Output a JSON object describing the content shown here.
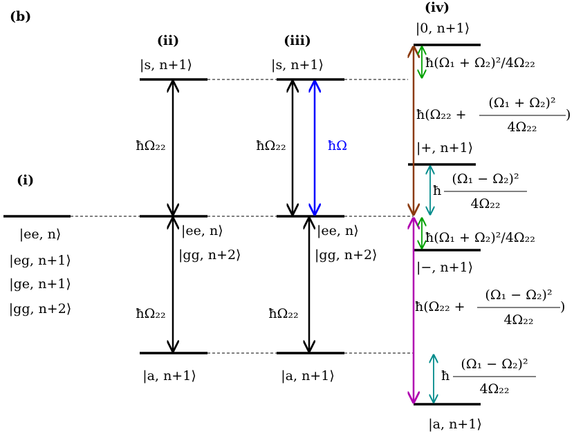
{
  "panel_label": "(b)",
  "columns": [
    {
      "label": "(i)",
      "levels": [
        "|ee, n⟩",
        "|eg, n+1⟩",
        "|ge, n+1⟩",
        "|gg, n+2⟩"
      ]
    },
    {
      "label": "(ii)",
      "top": "|s, n+1⟩",
      "middle": [
        "|ee, n⟩",
        "|gg, n+2⟩"
      ],
      "bottom": "|a, n+1⟩",
      "upper_gap": "ħΩ₂₂",
      "lower_gap": "ħΩ₂₂"
    },
    {
      "label": "(iii)",
      "top": "|s, n+1⟩",
      "middle": [
        "|ee, n⟩",
        "|gg, n+2⟩"
      ],
      "bottom": "|a, n+1⟩",
      "upper_gap": "ħΩ₂₂",
      "drive": "ħΩ",
      "lower_gap": "ħΩ₂₂"
    },
    {
      "label": "(iv)",
      "top": "|0, n+1⟩",
      "plus": "|+, n+1⟩",
      "minus": "|−, n+1⟩",
      "bottom": "|a, n+1⟩",
      "shift_top": "ħ(Ω₁ + Ω₂)²/4Ω₂₂",
      "gap_top": {
        "prefix": "ħ(Ω₂₂ + ",
        "numerator": "(Ω₁ + Ω₂)²",
        "denominator": "4Ω₂₂",
        "suffix": ")"
      },
      "shift_plus": {
        "prefix": "ħ",
        "numerator": "(Ω₁ − Ω₂)²",
        "denominator": "4Ω₂₂"
      },
      "shift_minus": "ħ(Ω₁ + Ω₂)²/4Ω₂₂",
      "gap_bottom": {
        "prefix": "ħ(Ω₂₂ + ",
        "numerator": "(Ω₁ − Ω₂)²",
        "denominator": "4Ω₂₂",
        "suffix": ")"
      },
      "shift_bottom": {
        "prefix": "ħ",
        "numerator": "(Ω₁ − Ω₂)²",
        "denominator": "4Ω₂₂"
      }
    }
  ]
}
